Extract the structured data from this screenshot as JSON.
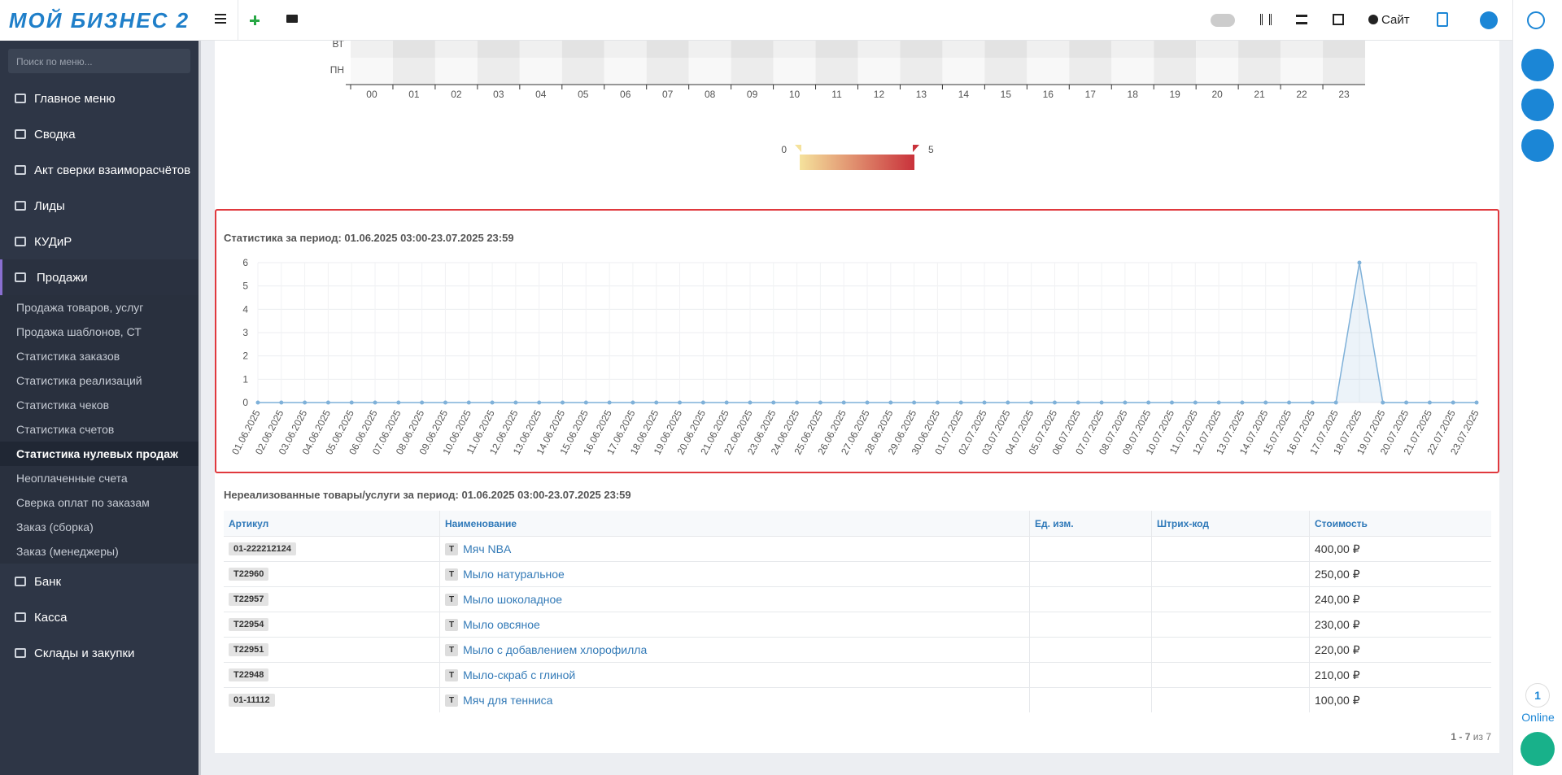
{
  "header": {
    "logo": "МОЙ БИЗНЕС 2",
    "site": "Сайт"
  },
  "sidebar": {
    "search": "Поиск по меню...",
    "active_top": 5,
    "active_sub": 6,
    "top_items": [
      "Главное меню",
      "Сводка",
      "Акт сверки взаиморасчётов",
      "Лиды",
      "КУДиР",
      "Продажи"
    ],
    "sub_items": [
      "Продажа товаров, услуг",
      "Продажа шаблонов, СТ",
      "Статистика заказов",
      "Статистика реализаций",
      "Статистика чеков",
      "Статистика счетов",
      "Статистика нулевых продаж",
      "Неоплаченные счета",
      "Сверка оплат по заказам",
      "Заказ (сборка)",
      "Заказ (менеджеры)"
    ],
    "bottom_items": [
      "Банк",
      "Касса",
      "Склады и закупки"
    ]
  },
  "heatmap": {
    "rows": [
      "ВТ",
      "ПН"
    ],
    "hours": [
      "00",
      "01",
      "02",
      "03",
      "04",
      "05",
      "06",
      "07",
      "08",
      "09",
      "10",
      "11",
      "12",
      "13",
      "14",
      "15",
      "16",
      "17",
      "18",
      "19",
      "20",
      "21",
      "22",
      "23"
    ],
    "legend": {
      "min": 0,
      "max": 5,
      "colors": [
        "#f5e29c",
        "#c9323b"
      ]
    }
  },
  "stats_chart": {
    "type": "line",
    "title": "Статистика за период: 01.06.2025 03:00-23.07.2025 23:59",
    "categories": [
      "01.06.2025",
      "02.06.2025",
      "03.06.2025",
      "04.06.2025",
      "05.06.2025",
      "06.06.2025",
      "07.06.2025",
      "08.06.2025",
      "09.06.2025",
      "10.06.2025",
      "11.06.2025",
      "12.06.2025",
      "13.06.2025",
      "14.06.2025",
      "15.06.2025",
      "16.06.2025",
      "17.06.2025",
      "18.06.2025",
      "19.06.2025",
      "20.06.2025",
      "21.06.2025",
      "22.06.2025",
      "23.06.2025",
      "24.06.2025",
      "25.06.2025",
      "26.06.2025",
      "27.06.2025",
      "28.06.2025",
      "29.06.2025",
      "30.06.2025",
      "01.07.2025",
      "02.07.2025",
      "03.07.2025",
      "04.07.2025",
      "05.07.2025",
      "06.07.2025",
      "07.07.2025",
      "08.07.2025",
      "09.07.2025",
      "10.07.2025",
      "11.07.2025",
      "12.07.2025",
      "13.07.2025",
      "14.07.2025",
      "15.07.2025",
      "16.07.2025",
      "17.07.2025",
      "18.07.2025",
      "19.07.2025",
      "20.07.2025",
      "21.07.2025",
      "22.07.2025",
      "23.07.2025"
    ],
    "values": [
      0,
      0,
      0,
      0,
      0,
      0,
      0,
      0,
      0,
      0,
      0,
      0,
      0,
      0,
      0,
      0,
      0,
      0,
      0,
      0,
      0,
      0,
      0,
      0,
      0,
      0,
      0,
      0,
      0,
      0,
      0,
      0,
      0,
      0,
      0,
      0,
      0,
      0,
      0,
      0,
      0,
      0,
      0,
      0,
      0,
      0,
      0,
      6,
      0,
      0,
      0,
      0,
      0
    ],
    "ylim": [
      0,
      6
    ],
    "yticks": [
      0,
      1,
      2,
      3,
      4,
      5,
      6
    ],
    "color": "#7fb1d9",
    "grid": true
  },
  "table": {
    "title": "Нереализованные товары/услуги за период: 01.06.2025 03:00-23.07.2025 23:59",
    "columns": [
      "Артикул",
      "Наименование",
      "Ед. изм.",
      "Штрих-код",
      "Стоимость"
    ],
    "rows": [
      {
        "article": "01-222212124",
        "type": "Т",
        "name": "Мяч NBA",
        "price": "400,00 ₽"
      },
      {
        "article": "T22960",
        "type": "Т",
        "name": "Мыло натуральное",
        "price": "250,00 ₽"
      },
      {
        "article": "T22957",
        "type": "Т",
        "name": "Мыло шоколадное",
        "price": "240,00 ₽"
      },
      {
        "article": "T22954",
        "type": "Т",
        "name": "Мыло овсяное",
        "price": "230,00 ₽"
      },
      {
        "article": "T22951",
        "type": "Т",
        "name": "Мыло с добавлением хлорофилла",
        "price": "220,00 ₽"
      },
      {
        "article": "T22948",
        "type": "Т",
        "name": "Мыло-скраб с глиной",
        "price": "210,00 ₽"
      },
      {
        "article": "01-11112",
        "type": "Т",
        "name": "Мяч для тенниса",
        "price": "100,00 ₽"
      }
    ]
  },
  "pagination": {
    "range": "1 - 7",
    "total": "из 7"
  },
  "right_bar": {
    "count": 1,
    "status": "Online"
  }
}
